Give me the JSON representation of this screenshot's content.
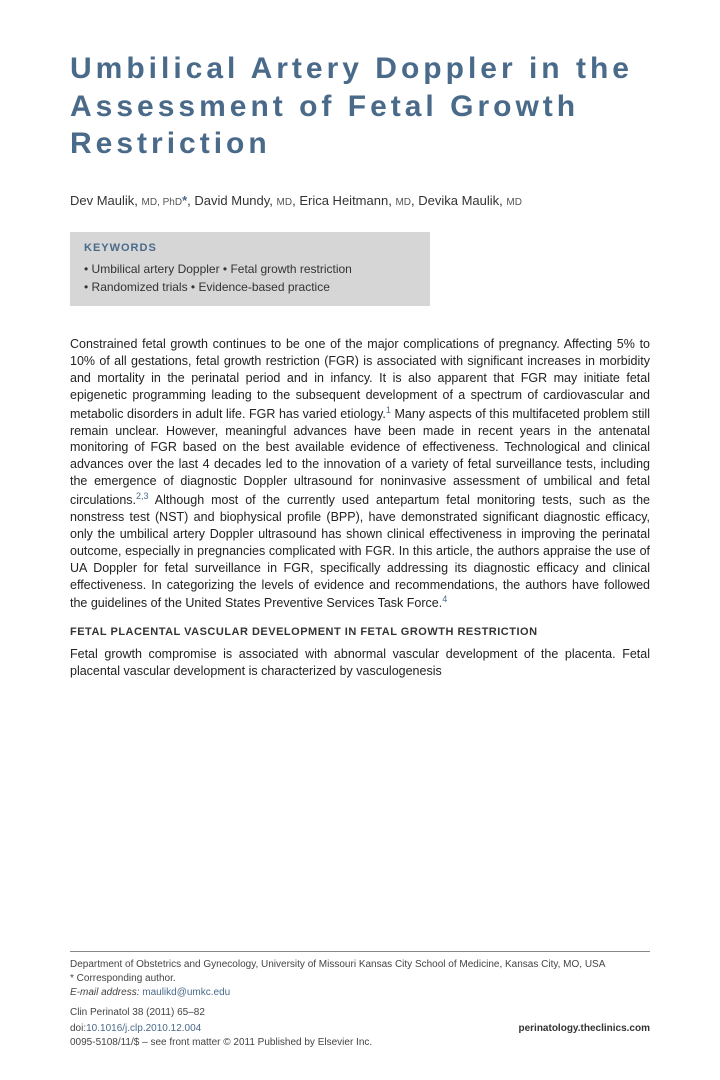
{
  "title": "Umbilical Artery Doppler in the Assessment of Fetal Growth Restriction",
  "authors": [
    {
      "name": "Dev Maulik",
      "creds": "MD, PhD",
      "corr": true
    },
    {
      "name": "David Mundy",
      "creds": "MD",
      "corr": false
    },
    {
      "name": "Erica Heitmann",
      "creds": "MD",
      "corr": false
    },
    {
      "name": "Devika Maulik",
      "creds": "MD",
      "corr": false
    }
  ],
  "keywords": {
    "heading": "KEYWORDS",
    "items": [
      "Umbilical artery Doppler",
      "Fetal growth restriction",
      "Randomized trials",
      "Evidence-based practice"
    ]
  },
  "paragraph1": "Constrained fetal growth continues to be one of the major complications of pregnancy. Affecting 5% to 10% of all gestations, fetal growth restriction (FGR) is associated with significant increases in morbidity and mortality in the perinatal period and in infancy. It is also apparent that FGR may initiate fetal epigenetic programming leading to the subsequent development of a spectrum of cardiovascular and metabolic disorders in adult life. FGR has varied etiology.",
  "ref1": "1",
  "paragraph1b": " Many aspects of this multifaceted problem still remain unclear. However, meaningful advances have been made in recent years in the antenatal monitoring of FGR based on the best available evidence of effectiveness. Technological and clinical advances over the last 4 decades led to the innovation of a variety of fetal surveillance tests, including the emergence of diagnostic Doppler ultrasound for noninvasive assessment of umbilical and fetal circulations.",
  "ref23": "2,3",
  "paragraph1c": " Although most of the currently used antepartum fetal monitoring tests, such as the nonstress test (NST) and biophysical profile (BPP), have demonstrated significant diagnostic efficacy, only the umbilical artery Doppler ultrasound has shown clinical effectiveness in improving the perinatal outcome, especially in pregnancies complicated with FGR. In this article, the authors appraise the use of UA Doppler for fetal surveillance in FGR, specifically addressing its diagnostic efficacy and clinical effectiveness. In categorizing the levels of evidence and recommendations, the authors have followed the guidelines of the United States Preventive Services Task Force.",
  "ref4": "4",
  "section_heading": "FETAL PLACENTAL VASCULAR DEVELOPMENT IN FETAL GROWTH RESTRICTION",
  "paragraph2": "Fetal growth compromise is associated with abnormal vascular development of the placenta. Fetal placental vascular development is characterized by vasculogenesis",
  "footer": {
    "affiliation": "Department of Obstetrics and Gynecology, University of Missouri Kansas City School of Medicine, Kansas City, MO, USA",
    "corr": "* Corresponding author.",
    "email_label": "E-mail address:",
    "email": "maulikd@umkc.edu",
    "citation": "Clin Perinatol 38 (2011) 65–82",
    "doi_label": "doi:",
    "doi": "10.1016/j.clp.2010.12.004",
    "site": "perinatology.theclinics.com",
    "copyright": "0095-5108/11/$ – see front matter © 2011 Published by Elsevier Inc."
  }
}
